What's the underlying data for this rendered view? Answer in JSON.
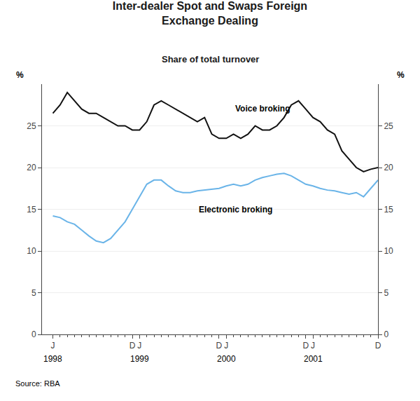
{
  "chart_data": {
    "type": "line",
    "title": "Inter-dealer Spot and Swaps Foreign\nExchange Dealing",
    "subtitle": "Share of total turnover",
    "source": "Source: RBA",
    "y_label": "%",
    "y2_label": "%",
    "categories": [
      "J",
      null,
      null,
      null,
      null,
      null,
      null,
      null,
      null,
      null,
      null,
      "D",
      "J",
      null,
      null,
      null,
      null,
      null,
      null,
      null,
      null,
      null,
      null,
      "D",
      "J",
      null,
      null,
      null,
      null,
      null,
      null,
      null,
      null,
      null,
      null,
      "D",
      "J",
      null,
      null,
      null,
      null,
      null,
      null,
      null,
      null,
      "D"
    ],
    "series": [
      {
        "color": "#111111",
        "values": [
          26.5,
          27.5,
          29.0,
          28.0,
          27.0,
          26.5,
          26.5,
          26.0,
          25.5,
          25.0,
          25.0,
          24.5,
          24.5,
          25.5,
          27.5,
          28.0,
          27.5,
          27.0,
          26.5,
          26.0,
          25.5,
          26.0,
          24.0,
          23.5,
          23.5,
          24.0,
          23.5,
          24.0,
          25.0,
          24.5,
          24.5,
          25.0,
          26.0,
          27.5,
          28.0,
          27.0,
          26.0,
          25.5,
          24.5,
          24.0,
          22.0,
          21.0,
          20.0,
          19.5,
          19.8,
          20.0
        ]
      },
      {
        "color": "#6ab4e8",
        "values": [
          14.2,
          14.0,
          13.5,
          13.2,
          12.5,
          11.8,
          11.2,
          11.0,
          11.5,
          12.5,
          13.5,
          15.0,
          16.5,
          18.0,
          18.5,
          18.5,
          17.8,
          17.2,
          17.0,
          17.0,
          17.2,
          17.3,
          17.4,
          17.5,
          17.8,
          18.0,
          17.8,
          18.0,
          18.5,
          18.8,
          19.0,
          19.2,
          19.3,
          19.0,
          18.5,
          18.0,
          17.8,
          17.5,
          17.3,
          17.2,
          17.0,
          16.8,
          17.0,
          16.5,
          17.5,
          18.5
        ]
      }
    ],
    "ylim": [
      0,
      30
    ],
    "yticks": [
      0,
      5,
      10,
      15,
      20,
      25
    ],
    "y2lim": [
      0,
      30
    ],
    "y2ticks": [
      0,
      5,
      10,
      15,
      20,
      25
    ],
    "grid": true,
    "annotations": [
      {
        "text": "1998",
        "x": 0
      },
      {
        "text": "1999",
        "x": 12
      },
      {
        "text": "2000",
        "x": 24
      },
      {
        "text": "2001",
        "x": 36
      },
      {
        "text": "Voice broking",
        "x": 25,
        "y": 26.3
      },
      {
        "text": "Electronic broking",
        "x": 20,
        "y": 14.2
      }
    ]
  }
}
